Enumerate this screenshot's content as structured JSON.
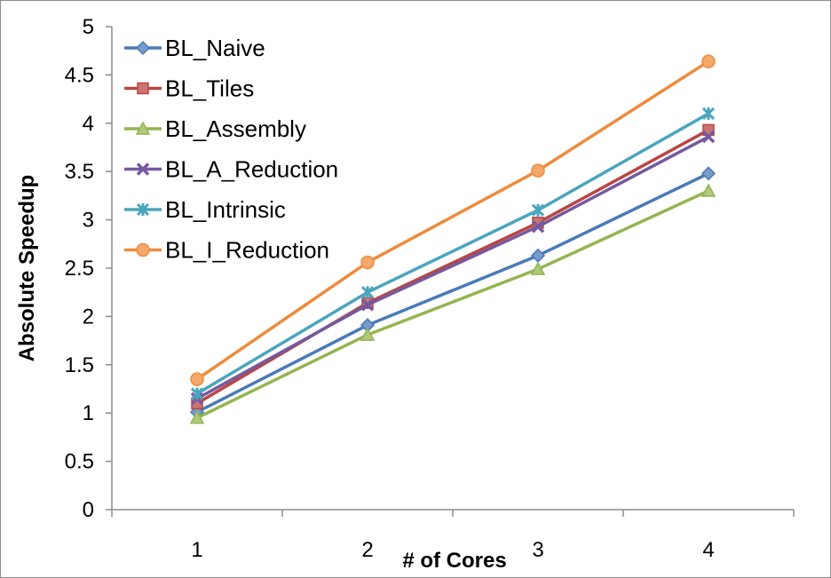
{
  "chart_data": {
    "type": "line",
    "xlabel": "# of Cores",
    "ylabel": "Absolute Speedup",
    "categories": [
      "1",
      "2",
      "3",
      "4"
    ],
    "ylim": [
      0,
      5
    ],
    "yticks": [
      "0",
      "0.5",
      "1",
      "1.5",
      "2",
      "2.5",
      "3",
      "3.5",
      "4",
      "4.5",
      "5"
    ],
    "grid": false,
    "legend_position": "top-left",
    "series": [
      {
        "name": "BL_Naive",
        "values": [
          1.01,
          1.91,
          2.63,
          3.48
        ],
        "color": "#4a7ab8",
        "marker": "diamond"
      },
      {
        "name": "BL_Tiles",
        "values": [
          1.1,
          2.14,
          2.97,
          3.93
        ],
        "color": "#b94642",
        "marker": "square"
      },
      {
        "name": "BL_Assembly",
        "values": [
          0.95,
          1.81,
          2.49,
          3.3
        ],
        "color": "#94b550",
        "marker": "triangle"
      },
      {
        "name": "BL_A_Reduction",
        "values": [
          1.15,
          2.12,
          2.93,
          3.86
        ],
        "color": "#7559a0",
        "marker": "x"
      },
      {
        "name": "BL_Intrinsic",
        "values": [
          1.2,
          2.25,
          3.1,
          4.1
        ],
        "color": "#4aa5bd",
        "marker": "star"
      },
      {
        "name": "BL_I_Reduction",
        "values": [
          1.35,
          2.56,
          3.51,
          4.64
        ],
        "color": "#ef8b3b",
        "marker": "circle"
      }
    ]
  }
}
